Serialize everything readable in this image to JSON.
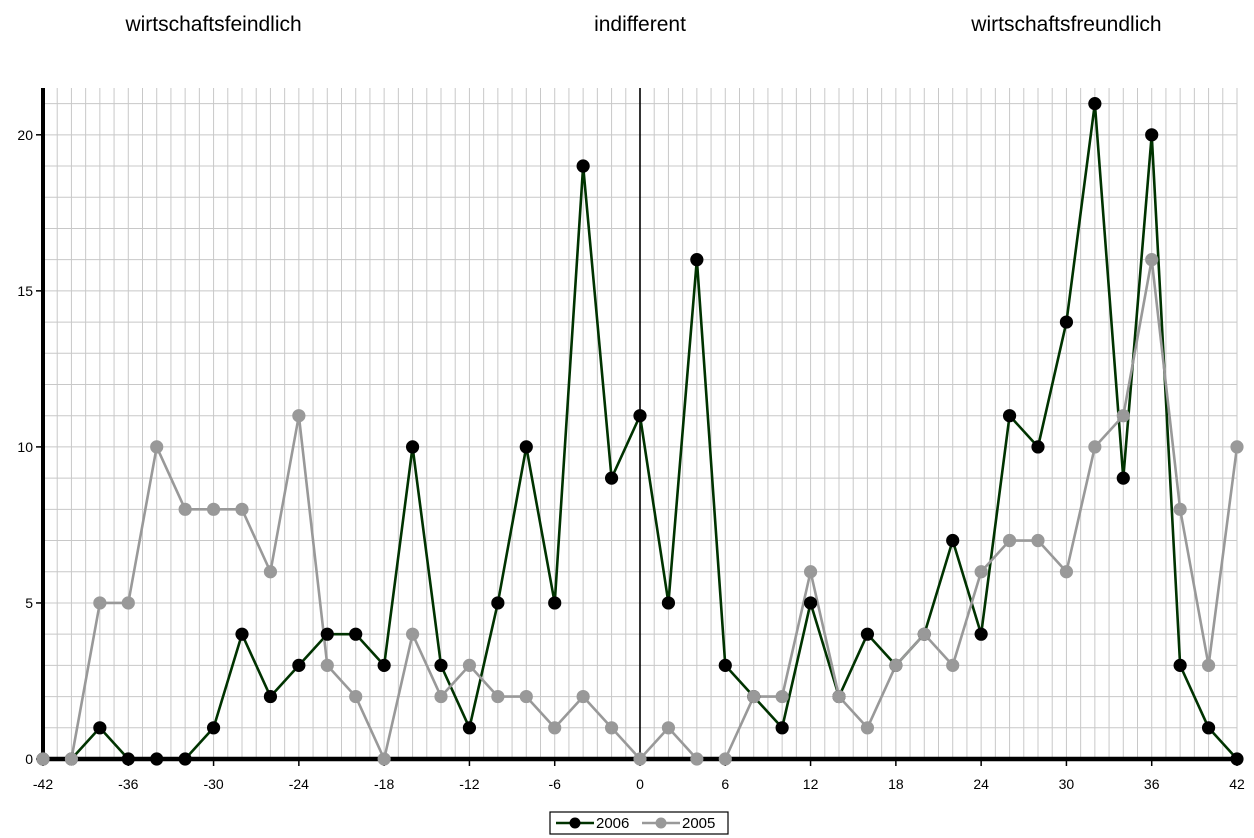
{
  "chart_data": {
    "type": "line",
    "region_labels": [
      {
        "text": "wirtschaftsfeindlich",
        "x": -30
      },
      {
        "text": "indifferent",
        "x": 0
      },
      {
        "text": "wirtschaftsfreundlich",
        "x": 30
      }
    ],
    "xlim": [
      -42,
      42
    ],
    "ylim": [
      0,
      21.5
    ],
    "x_ticks": [
      -42,
      -36,
      -30,
      -24,
      -18,
      -12,
      -6,
      0,
      6,
      12,
      18,
      24,
      30,
      36,
      42
    ],
    "y_ticks": [
      0,
      5,
      10,
      15,
      20
    ],
    "x_minor_step": 1,
    "y_minor_step": 1,
    "grid": true,
    "legend_position": "bottom-center",
    "x": [
      -42,
      -40,
      -38,
      -36,
      -34,
      -32,
      -30,
      -28,
      -26,
      -24,
      -22,
      -20,
      -18,
      -16,
      -14,
      -12,
      -10,
      -8,
      -6,
      -4,
      -2,
      0,
      2,
      4,
      6,
      8,
      10,
      12,
      14,
      16,
      18,
      20,
      22,
      24,
      26,
      28,
      30,
      32,
      34,
      36,
      38,
      40,
      42
    ],
    "series": [
      {
        "name": "2006",
        "line_color": "#003300",
        "marker_color": "#000000",
        "values": [
          0,
          0,
          1,
          0,
          0,
          0,
          1,
          4,
          2,
          3,
          4,
          4,
          3,
          10,
          3,
          1,
          5,
          10,
          5,
          19,
          9,
          11,
          5,
          16,
          3,
          2,
          1,
          5,
          2,
          4,
          3,
          4,
          7,
          4,
          11,
          10,
          14,
          21,
          9,
          20,
          3,
          1,
          0
        ]
      },
      {
        "name": "2005",
        "line_color": "#999999",
        "marker_color": "#999999",
        "values": [
          0,
          0,
          5,
          5,
          10,
          8,
          8,
          8,
          6,
          11,
          3,
          2,
          0,
          4,
          2,
          3,
          2,
          2,
          1,
          2,
          1,
          0,
          1,
          0,
          0,
          2,
          2,
          6,
          2,
          1,
          3,
          4,
          3,
          6,
          7,
          7,
          6,
          10,
          11,
          16,
          8,
          3,
          10
        ]
      }
    ]
  }
}
